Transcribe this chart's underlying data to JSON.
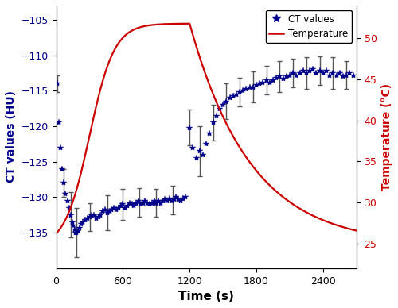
{
  "left_ylabel": "CT values (HU)",
  "right_ylabel": "Temperature (°C)",
  "xlabel": "Time (s)",
  "xlim": [
    0,
    2700
  ],
  "ylim_ct": [
    -140,
    -103
  ],
  "ylim_temp": [
    22,
    54
  ],
  "yticks_ct": [
    -135,
    -130,
    -125,
    -120,
    -115,
    -110,
    -105
  ],
  "yticks_temp": [
    25,
    30,
    35,
    40,
    45,
    50
  ],
  "xticks": [
    0,
    600,
    1200,
    1800,
    2400
  ],
  "ct_color": "#00008B",
  "temp_color": "#CC0000",
  "eb_color": "#555555",
  "ct_markersize": 6,
  "ct_points": [
    [
      10,
      -114.0
    ],
    [
      25,
      -119.5
    ],
    [
      40,
      -123.0
    ],
    [
      55,
      -126.0
    ],
    [
      70,
      -128.0
    ],
    [
      85,
      -129.5
    ],
    [
      100,
      -130.5
    ],
    [
      115,
      -131.5
    ],
    [
      130,
      -132.5
    ],
    [
      145,
      -133.5
    ],
    [
      155,
      -134.0
    ],
    [
      165,
      -134.5
    ],
    [
      175,
      -135.0
    ],
    [
      185,
      -135.0
    ],
    [
      195,
      -134.8
    ],
    [
      210,
      -134.3
    ],
    [
      225,
      -133.8
    ],
    [
      240,
      -133.5
    ],
    [
      260,
      -133.2
    ],
    [
      280,
      -133.0
    ],
    [
      300,
      -132.8
    ],
    [
      320,
      -132.5
    ],
    [
      340,
      -132.5
    ],
    [
      360,
      -133.0
    ],
    [
      380,
      -132.8
    ],
    [
      400,
      -132.5
    ],
    [
      420,
      -132.0
    ],
    [
      440,
      -131.8
    ],
    [
      460,
      -132.2
    ],
    [
      480,
      -132.0
    ],
    [
      500,
      -131.8
    ],
    [
      520,
      -131.5
    ],
    [
      540,
      -131.8
    ],
    [
      560,
      -131.5
    ],
    [
      580,
      -131.2
    ],
    [
      600,
      -131.0
    ],
    [
      620,
      -131.5
    ],
    [
      640,
      -131.2
    ],
    [
      660,
      -130.8
    ],
    [
      680,
      -131.0
    ],
    [
      700,
      -131.2
    ],
    [
      720,
      -130.8
    ],
    [
      740,
      -130.5
    ],
    [
      760,
      -131.0
    ],
    [
      780,
      -130.8
    ],
    [
      800,
      -130.5
    ],
    [
      820,
      -130.8
    ],
    [
      840,
      -131.0
    ],
    [
      860,
      -130.8
    ],
    [
      880,
      -130.5
    ],
    [
      900,
      -130.8
    ],
    [
      920,
      -130.5
    ],
    [
      940,
      -130.8
    ],
    [
      960,
      -130.5
    ],
    [
      980,
      -130.3
    ],
    [
      1000,
      -130.5
    ],
    [
      1020,
      -130.2
    ],
    [
      1040,
      -130.5
    ],
    [
      1060,
      -130.3
    ],
    [
      1080,
      -130.0
    ],
    [
      1100,
      -130.3
    ],
    [
      1120,
      -130.5
    ],
    [
      1140,
      -130.2
    ],
    [
      1160,
      -130.0
    ],
    [
      1200,
      -120.2
    ],
    [
      1230,
      -123.0
    ],
    [
      1260,
      -124.5
    ],
    [
      1290,
      -123.5
    ],
    [
      1320,
      -124.0
    ],
    [
      1350,
      -122.5
    ],
    [
      1380,
      -121.0
    ],
    [
      1410,
      -119.5
    ],
    [
      1440,
      -118.5
    ],
    [
      1470,
      -117.5
    ],
    [
      1500,
      -117.0
    ],
    [
      1530,
      -116.5
    ],
    [
      1560,
      -116.0
    ],
    [
      1590,
      -115.8
    ],
    [
      1620,
      -115.5
    ],
    [
      1650,
      -115.2
    ],
    [
      1680,
      -115.0
    ],
    [
      1710,
      -114.8
    ],
    [
      1740,
      -114.5
    ],
    [
      1770,
      -114.5
    ],
    [
      1800,
      -114.2
    ],
    [
      1830,
      -114.0
    ],
    [
      1860,
      -113.8
    ],
    [
      1890,
      -113.5
    ],
    [
      1920,
      -113.8
    ],
    [
      1950,
      -113.5
    ],
    [
      1980,
      -113.2
    ],
    [
      2010,
      -113.0
    ],
    [
      2040,
      -113.3
    ],
    [
      2070,
      -113.0
    ],
    [
      2100,
      -112.8
    ],
    [
      2130,
      -112.5
    ],
    [
      2160,
      -112.8
    ],
    [
      2190,
      -112.5
    ],
    [
      2220,
      -112.2
    ],
    [
      2250,
      -112.5
    ],
    [
      2280,
      -112.2
    ],
    [
      2310,
      -112.0
    ],
    [
      2340,
      -112.5
    ],
    [
      2370,
      -112.2
    ],
    [
      2400,
      -112.5
    ],
    [
      2430,
      -112.2
    ],
    [
      2460,
      -112.8
    ],
    [
      2490,
      -112.5
    ],
    [
      2520,
      -112.8
    ],
    [
      2550,
      -112.5
    ],
    [
      2580,
      -113.0
    ],
    [
      2610,
      -112.8
    ],
    [
      2640,
      -112.5
    ],
    [
      2670,
      -112.8
    ]
  ],
  "ct_errors": [
    [
      10,
      1.2
    ],
    [
      70,
      2.0
    ],
    [
      130,
      3.2
    ],
    [
      185,
      3.5
    ],
    [
      300,
      2.0
    ],
    [
      460,
      2.5
    ],
    [
      600,
      2.2
    ],
    [
      750,
      2.0
    ],
    [
      900,
      2.0
    ],
    [
      1050,
      2.0
    ],
    [
      1200,
      2.5
    ],
    [
      1290,
      3.5
    ],
    [
      1410,
      2.5
    ],
    [
      1530,
      2.5
    ],
    [
      1650,
      2.0
    ],
    [
      1770,
      2.2
    ],
    [
      1890,
      2.0
    ],
    [
      2010,
      2.2
    ],
    [
      2130,
      2.0
    ],
    [
      2250,
      2.2
    ],
    [
      2370,
      2.0
    ],
    [
      2490,
      2.2
    ],
    [
      2610,
      2.0
    ]
  ],
  "temp_heat_params": {
    "t0": 0,
    "t1": 1200,
    "T0": 24.5,
    "T1": 51.8,
    "k": 0.009,
    "mid": 300
  },
  "temp_cool_params": {
    "t0": 1200,
    "t1": 2700,
    "T_peak": 51.8,
    "T_end": 24.8,
    "tau": 550
  }
}
